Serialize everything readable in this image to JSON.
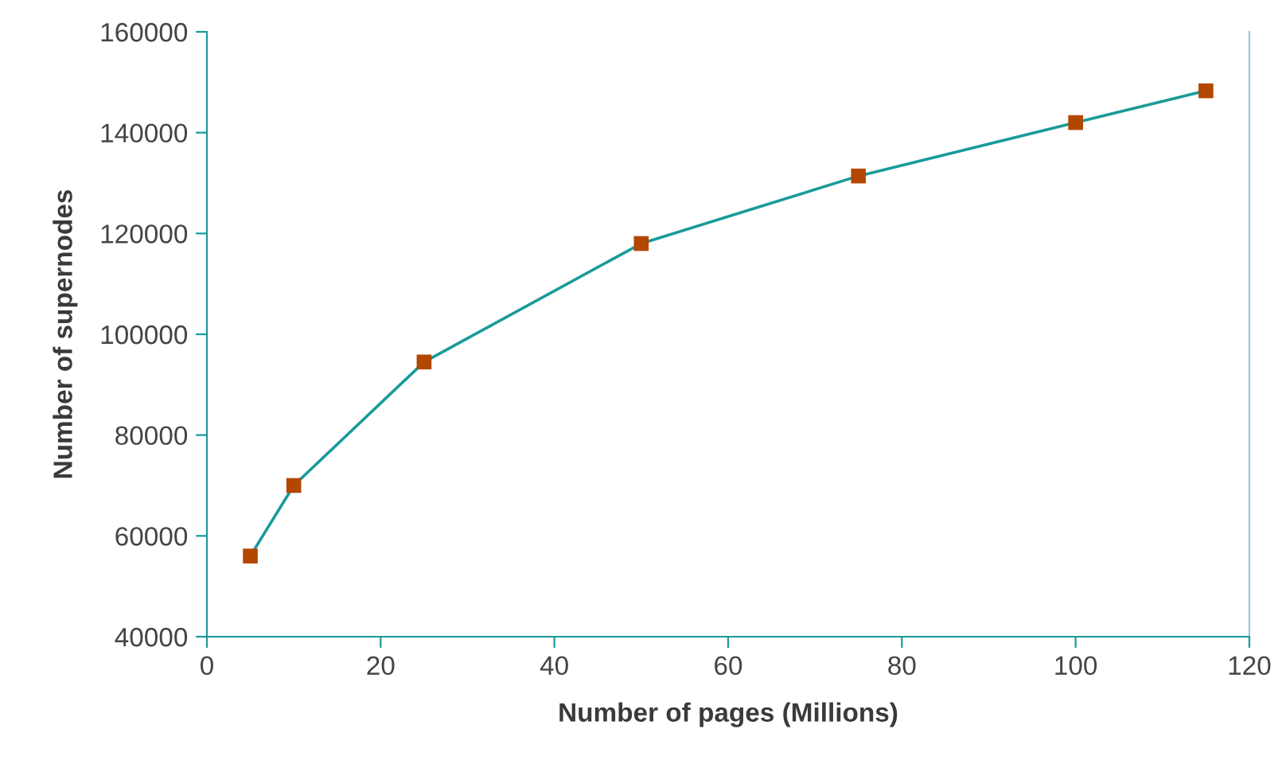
{
  "chart_data": {
    "type": "line",
    "xlabel": "Number of pages (Millions)",
    "ylabel": "Number of supernodes",
    "x": [
      5,
      10,
      25,
      50,
      75,
      100,
      115
    ],
    "series": [
      {
        "color": "#1a9a9a",
        "colors": [
          "#b34700",
          "#b34700",
          "#b34700",
          "#b34700",
          "#b34700",
          "#b34700",
          "#b34700"
        ],
        "values": [
          56000,
          70000,
          94500,
          118000,
          131400,
          142000,
          148300
        ]
      }
    ],
    "xlim": [
      0,
      120
    ],
    "xticks": [
      0,
      20,
      40,
      60,
      80,
      100,
      120
    ],
    "ylim": [
      40000,
      160000
    ],
    "yticks": [
      40000,
      60000,
      80000,
      100000,
      120000,
      140000,
      160000
    ],
    "grid": false,
    "legend": false,
    "marker": "square",
    "line_style": "solid"
  }
}
